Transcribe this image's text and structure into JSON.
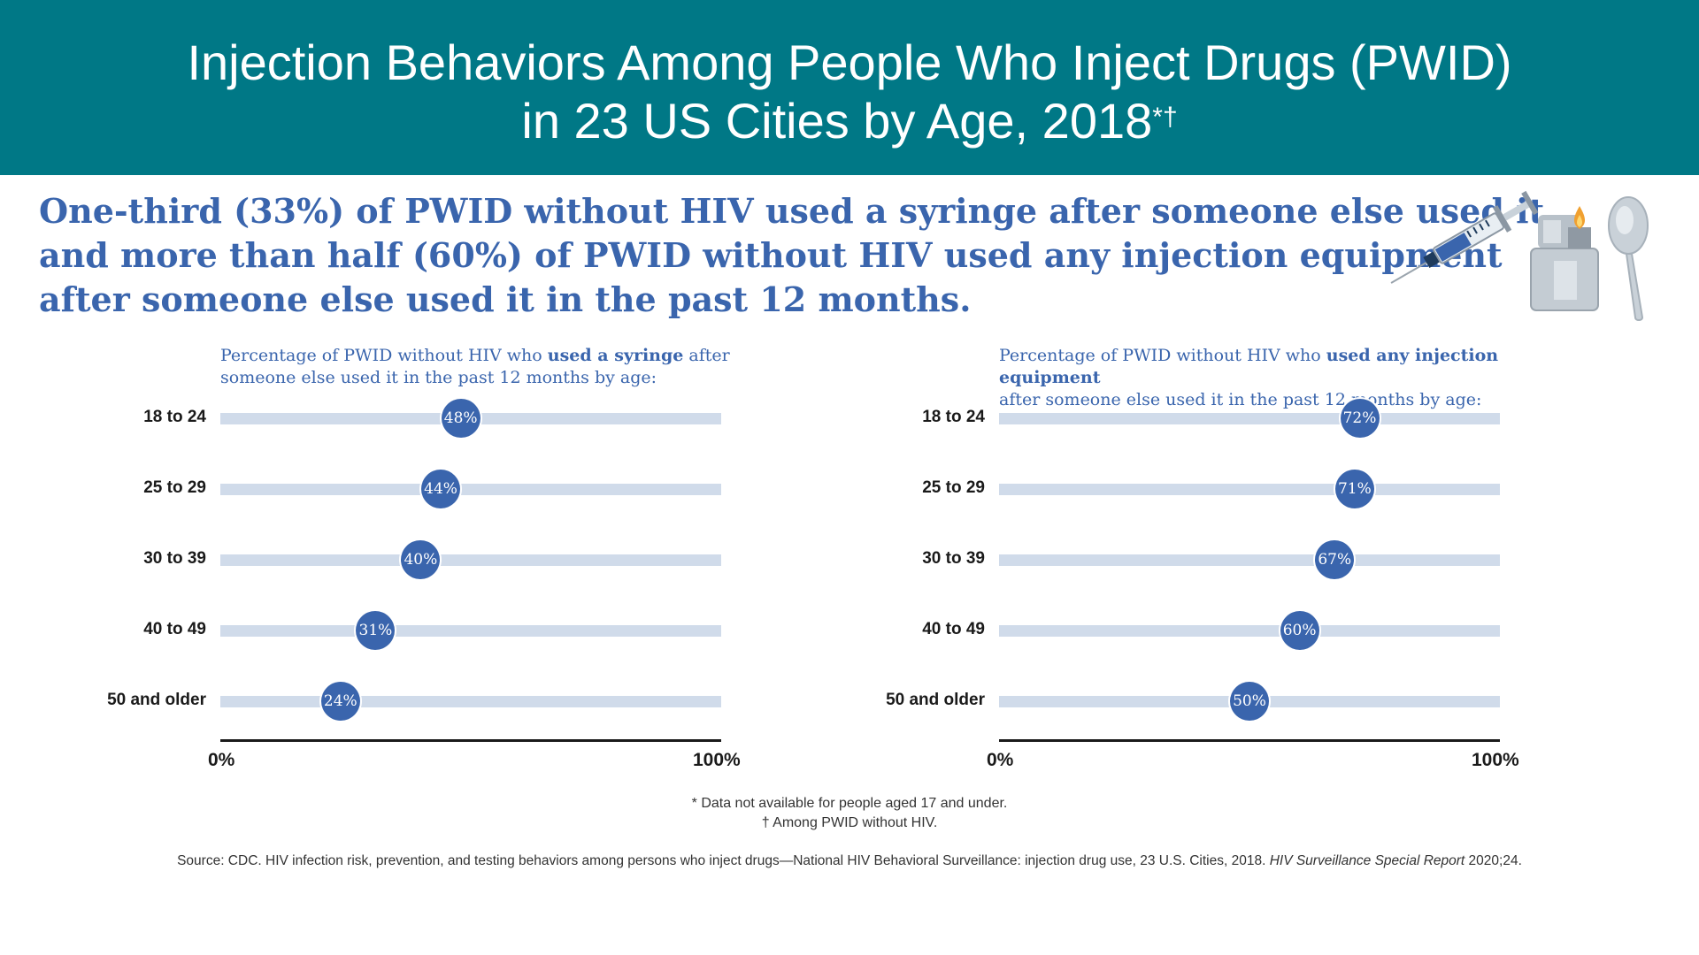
{
  "header": {
    "title_line1": "Injection Behaviors Among People Who Inject Drugs (PWID)",
    "title_line2": "in 23 US Cities by Age, 2018",
    "title_marks": "*†"
  },
  "headline": {
    "line1": "One-third (33%) of PWID without HIV used a syringe after someone else used it",
    "line2": "and more than half (60%) of PWID without HIV used any injection equipment",
    "line3": "after someone else used it in the past 12 months."
  },
  "icons": [
    "syringe-icon",
    "lighter-icon",
    "spoon-icon"
  ],
  "colors": {
    "banner": "#007886",
    "headline": "#3a65ad",
    "dot": "#3a65ad",
    "track": "#d0dbea"
  },
  "chart_data": [
    {
      "type": "dot",
      "title_pre": "Percentage of PWID without HIV who ",
      "title_bold": "used a syringe",
      "title_post": " after",
      "title_line2": "someone else used it in the past 12 months by age:",
      "categories": [
        "18 to 24",
        "25 to 29",
        "30 to 39",
        "40 to 49",
        "50 and older"
      ],
      "values": [
        48,
        44,
        40,
        31,
        24
      ],
      "value_labels": [
        "48%",
        "44%",
        "40%",
        "31%",
        "24%"
      ],
      "xlim": [
        0,
        100
      ],
      "tick_labels": [
        "0%",
        "100%"
      ]
    },
    {
      "type": "dot",
      "title_pre": "Percentage of PWID without HIV who ",
      "title_bold": "used any injection equipment",
      "title_post": "",
      "title_line2": "after someone else used it in the past 12 months by age:",
      "categories": [
        "18 to 24",
        "25 to 29",
        "30 to 39",
        "40 to 49",
        "50 and older"
      ],
      "values": [
        72,
        71,
        67,
        60,
        50
      ],
      "value_labels": [
        "72%",
        "71%",
        "67%",
        "60%",
        "50%"
      ],
      "xlim": [
        0,
        100
      ],
      "tick_labels": [
        "0%",
        "100%"
      ]
    }
  ],
  "footnotes": {
    "note1": "* Data not available for people aged 17 and under.",
    "note2": "† Among PWID without HIV."
  },
  "source": {
    "text": "Source: CDC. HIV infection risk, prevention, and testing behaviors among persons who inject drugs—National HIV Behavioral Surveillance: injection drug use, 23 U.S. Cities, 2018. ",
    "journal": "HIV Surveillance Special Report",
    "tail": " 2020;24."
  }
}
